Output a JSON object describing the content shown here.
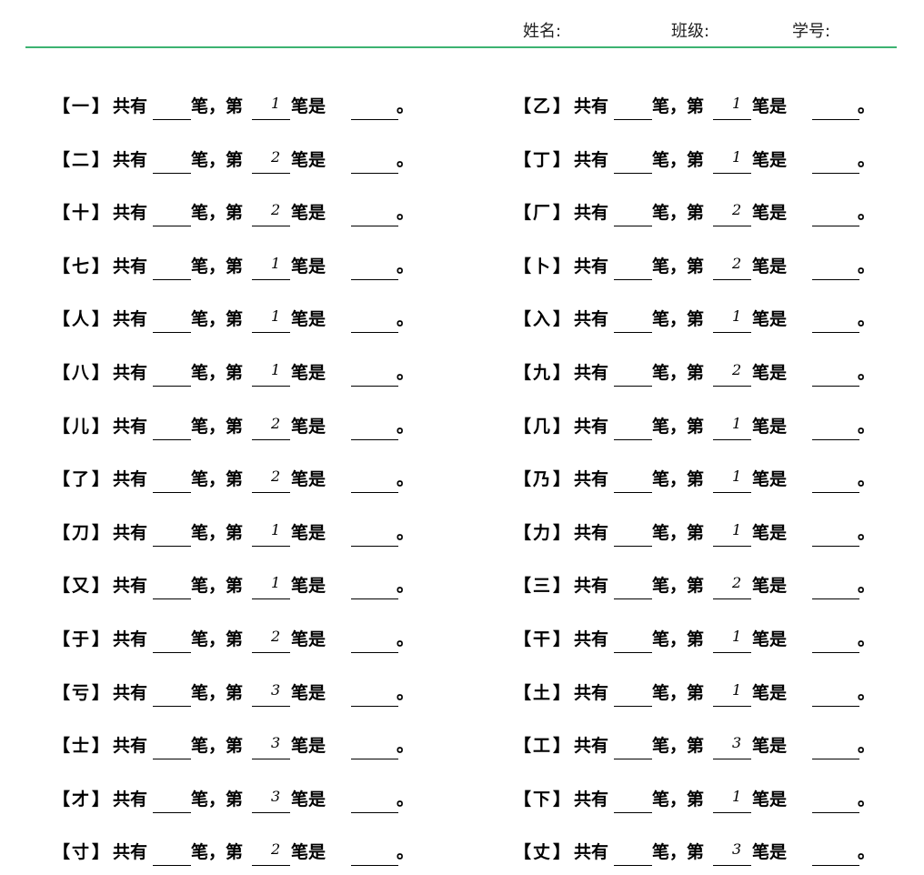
{
  "header": {
    "name_label": "姓名:",
    "class_label": "班级:",
    "id_label": "学号:"
  },
  "accent_color": "#3cb371",
  "template": {
    "open": "【",
    "close": "】",
    "has": "共有",
    "strokes": "笔，第",
    "stroke_is": "笔是",
    "period": "。"
  },
  "left": [
    {
      "char": "一",
      "n": "1"
    },
    {
      "char": "二",
      "n": "2"
    },
    {
      "char": "十",
      "n": "2"
    },
    {
      "char": "七",
      "n": "1"
    },
    {
      "char": "人",
      "n": "1"
    },
    {
      "char": "八",
      "n": "1"
    },
    {
      "char": "儿",
      "n": "2"
    },
    {
      "char": "了",
      "n": "2"
    },
    {
      "char": "刀",
      "n": "1"
    },
    {
      "char": "又",
      "n": "1"
    },
    {
      "char": "于",
      "n": "2"
    },
    {
      "char": "亏",
      "n": "3"
    },
    {
      "char": "士",
      "n": "3"
    },
    {
      "char": "才",
      "n": "3"
    },
    {
      "char": "寸",
      "n": "2"
    }
  ],
  "right": [
    {
      "char": "乙",
      "n": "1"
    },
    {
      "char": "丁",
      "n": "1"
    },
    {
      "char": "厂",
      "n": "2"
    },
    {
      "char": "卜",
      "n": "2"
    },
    {
      "char": "入",
      "n": "1"
    },
    {
      "char": "九",
      "n": "2"
    },
    {
      "char": "几",
      "n": "1"
    },
    {
      "char": "乃",
      "n": "1"
    },
    {
      "char": "力",
      "n": "1"
    },
    {
      "char": "三",
      "n": "2"
    },
    {
      "char": "干",
      "n": "1"
    },
    {
      "char": "土",
      "n": "1"
    },
    {
      "char": "工",
      "n": "3"
    },
    {
      "char": "下",
      "n": "1"
    },
    {
      "char": "丈",
      "n": "3"
    }
  ]
}
